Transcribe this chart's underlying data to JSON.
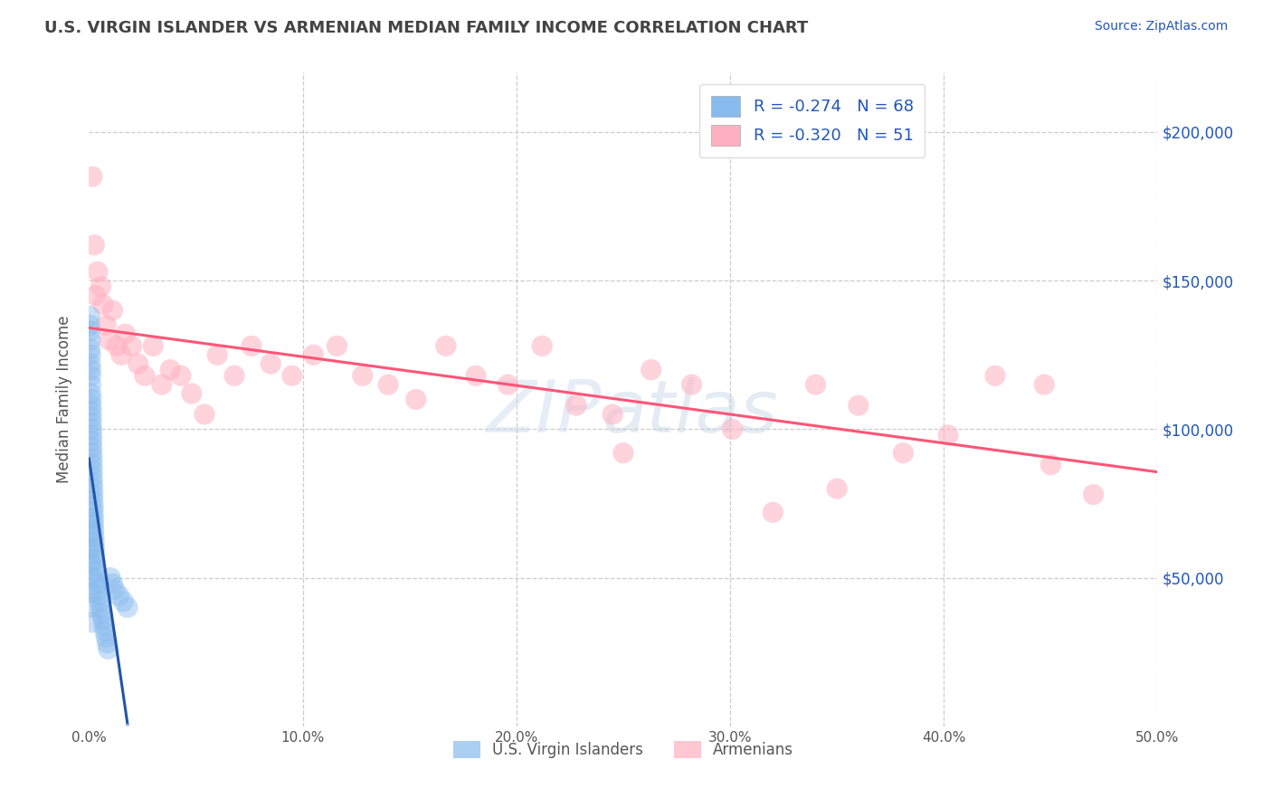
{
  "title": "U.S. VIRGIN ISLANDER VS ARMENIAN MEDIAN FAMILY INCOME CORRELATION CHART",
  "source": "Source: ZipAtlas.com",
  "ylabel": "Median Family Income",
  "xlim": [
    0.0,
    0.5
  ],
  "ylim": [
    0,
    220000
  ],
  "xticks": [
    0.0,
    0.1,
    0.2,
    0.3,
    0.4,
    0.5
  ],
  "xtick_labels": [
    "0.0%",
    "10.0%",
    "20.0%",
    "30.0%",
    "40.0%",
    "50.0%"
  ],
  "yticks": [
    0,
    50000,
    100000,
    150000,
    200000
  ],
  "ytick_labels": [
    "",
    "$50,000",
    "$100,000",
    "$150,000",
    "$200,000"
  ],
  "blue_color": "#88BBEE",
  "pink_color": "#FFB0C0",
  "blue_line_color": "#2255AA",
  "pink_line_color": "#FF5577",
  "dashed_color": "#AACCEE",
  "R_blue": -0.274,
  "N_blue": 68,
  "R_pink": -0.32,
  "N_pink": 51,
  "legend_blue_label": "U.S. Virgin Islanders",
  "legend_pink_label": "Armenians",
  "watermark_text": "ZIPatlas",
  "background_color": "#FFFFFF",
  "grid_color": "#CCCCCC",
  "title_color": "#444444",
  "axis_color": "#555555",
  "legend_text_color": "#2255BB",
  "source_color": "#2255BB",
  "blue_scatter_x": [
    0.0003,
    0.0004,
    0.0005,
    0.0006,
    0.0006,
    0.0007,
    0.0007,
    0.0008,
    0.0008,
    0.0009,
    0.0009,
    0.001,
    0.001,
    0.0011,
    0.0011,
    0.0012,
    0.0012,
    0.0013,
    0.0013,
    0.0014,
    0.0014,
    0.0015,
    0.0015,
    0.0016,
    0.0016,
    0.0017,
    0.0018,
    0.0018,
    0.0019,
    0.002,
    0.002,
    0.0021,
    0.0021,
    0.0022,
    0.0023,
    0.0024,
    0.0025,
    0.0026,
    0.0028,
    0.003,
    0.0032,
    0.0035,
    0.0038,
    0.0042,
    0.0046,
    0.005,
    0.0055,
    0.006,
    0.0065,
    0.007,
    0.0075,
    0.008,
    0.0085,
    0.009,
    0.01,
    0.011,
    0.012,
    0.014,
    0.016,
    0.018,
    0.0004,
    0.0005,
    0.0006,
    0.0007,
    0.0009,
    0.0011,
    0.0013,
    0.0015
  ],
  "blue_scatter_y": [
    138000,
    135000,
    133000,
    130000,
    127000,
    125000,
    122000,
    120000,
    118000,
    115000,
    112000,
    110000,
    108000,
    106000,
    104000,
    102000,
    100000,
    98000,
    96000,
    94000,
    92000,
    90000,
    88000,
    86000,
    84000,
    82000,
    80000,
    78000,
    76000,
    74000,
    72000,
    70000,
    68000,
    66000,
    64000,
    62000,
    60000,
    58000,
    56000,
    54000,
    52000,
    50000,
    48000,
    46000,
    44000,
    42000,
    40000,
    38000,
    36000,
    34000,
    32000,
    30000,
    28000,
    26000,
    50000,
    48000,
    46000,
    44000,
    42000,
    40000,
    70000,
    65000,
    60000,
    55000,
    50000,
    45000,
    40000,
    35000
  ],
  "pink_scatter_x": [
    0.0015,
    0.0025,
    0.003,
    0.004,
    0.0055,
    0.0065,
    0.008,
    0.0095,
    0.011,
    0.013,
    0.015,
    0.017,
    0.02,
    0.023,
    0.026,
    0.03,
    0.034,
    0.038,
    0.043,
    0.048,
    0.054,
    0.06,
    0.068,
    0.076,
    0.085,
    0.095,
    0.105,
    0.116,
    0.128,
    0.14,
    0.153,
    0.167,
    0.181,
    0.196,
    0.212,
    0.228,
    0.245,
    0.263,
    0.282,
    0.301,
    0.32,
    0.34,
    0.36,
    0.381,
    0.402,
    0.424,
    0.447,
    0.47,
    0.25,
    0.35,
    0.45
  ],
  "pink_scatter_y": [
    185000,
    162000,
    145000,
    153000,
    148000,
    142000,
    135000,
    130000,
    140000,
    128000,
    125000,
    132000,
    128000,
    122000,
    118000,
    128000,
    115000,
    120000,
    118000,
    112000,
    105000,
    125000,
    118000,
    128000,
    122000,
    118000,
    125000,
    128000,
    118000,
    115000,
    110000,
    128000,
    118000,
    115000,
    128000,
    108000,
    105000,
    120000,
    115000,
    100000,
    72000,
    115000,
    108000,
    92000,
    98000,
    118000,
    115000,
    78000,
    92000,
    80000,
    88000
  ]
}
